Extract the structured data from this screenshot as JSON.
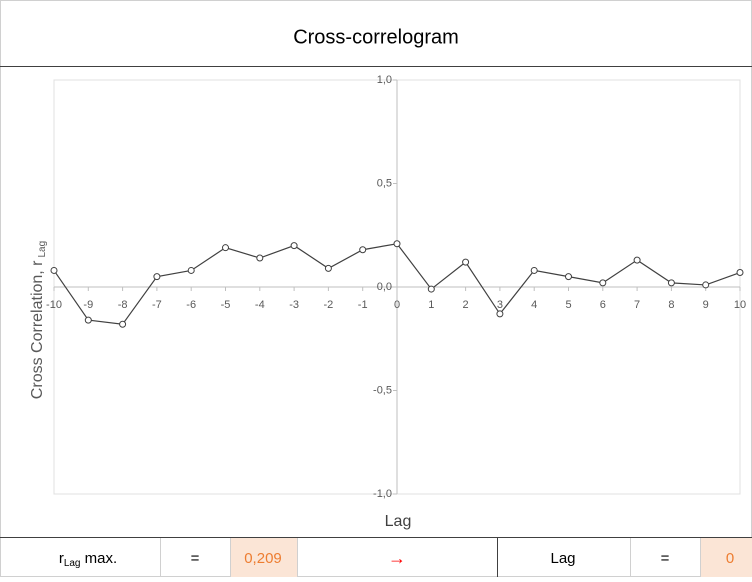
{
  "chart_data": {
    "type": "line",
    "title": "Cross-correlogram",
    "x_label": "Lag",
    "y_label": "Cross Correlation, r",
    "y_label_sub": "Lag",
    "x": [
      -10,
      -9,
      -8,
      -7,
      -6,
      -5,
      -4,
      -3,
      -2,
      -1,
      0,
      1,
      2,
      3,
      4,
      5,
      6,
      7,
      8,
      9,
      10
    ],
    "series": [
      {
        "color": "#404040",
        "values": [
          0.08,
          -0.16,
          -0.18,
          0.05,
          0.08,
          0.19,
          0.14,
          0.2,
          0.09,
          0.18,
          0.209,
          -0.01,
          0.12,
          -0.13,
          0.08,
          0.05,
          0.02,
          0.13,
          0.02,
          0.01,
          0.07
        ]
      }
    ],
    "xlim": [
      -10,
      10
    ],
    "xticks": [
      -10,
      -9,
      -8,
      -7,
      -6,
      -5,
      -4,
      -3,
      -2,
      -1,
      0,
      1,
      2,
      3,
      4,
      5,
      6,
      7,
      8,
      9,
      10
    ],
    "ylim": [
      -1,
      1
    ],
    "yticks": [
      {
        "value": -1,
        "label": "-1,0"
      },
      {
        "value": -0.5,
        "label": "-0,5"
      },
      {
        "value": 0,
        "label": "0,0"
      },
      {
        "value": 0.5,
        "label": "0,5"
      },
      {
        "value": 1,
        "label": "1,0"
      }
    ]
  },
  "summary": {
    "r_label": "r",
    "r_sub": "Lag",
    "r_suffix": " max.",
    "eq1": "=",
    "r_value": "0,209",
    "arrow": "→",
    "lag_label": "Lag",
    "eq2": "=",
    "lag_value": "0"
  }
}
